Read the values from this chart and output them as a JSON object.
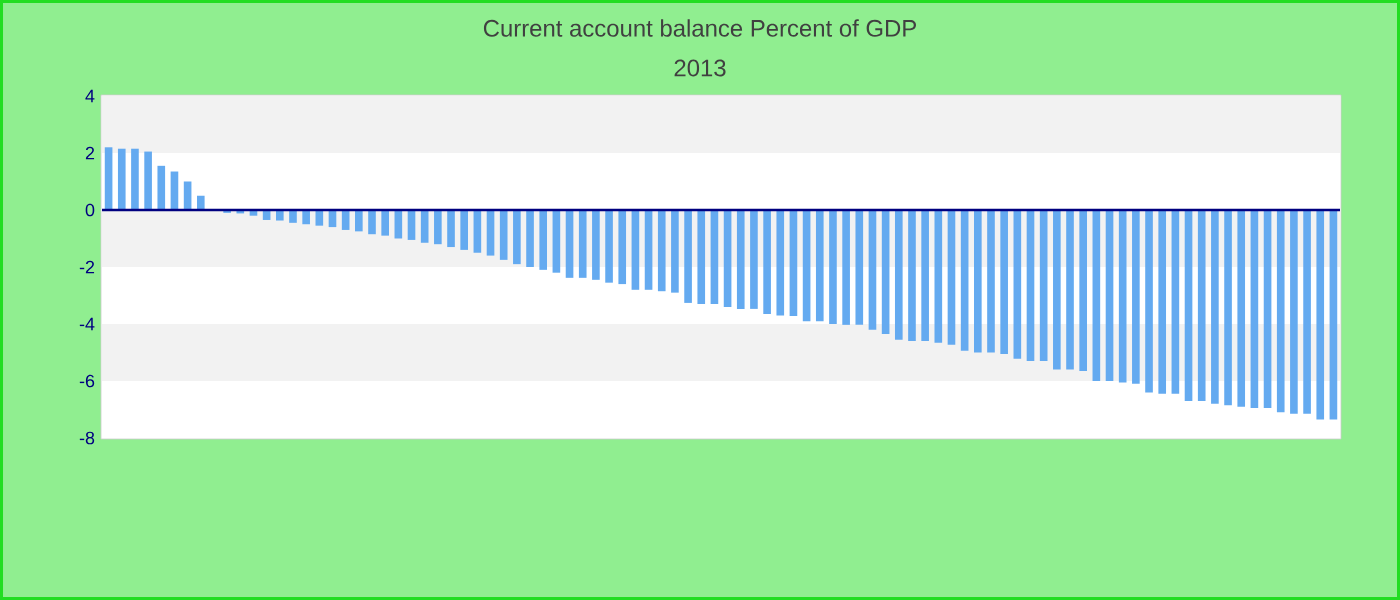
{
  "chart_data": {
    "type": "bar",
    "title": "Current account balance  Percent of GDP",
    "subtitle": "2013",
    "categories": [
      null,
      null,
      null,
      null,
      null,
      null,
      null,
      null,
      null,
      null,
      null,
      null,
      null,
      null,
      null,
      null,
      null,
      null,
      null,
      null,
      null,
      null,
      null,
      null,
      null,
      null,
      null,
      null,
      null,
      null,
      null,
      null,
      null,
      null,
      null,
      null,
      null,
      null,
      null,
      null,
      null,
      null,
      null,
      null,
      null,
      null,
      null,
      null,
      null,
      null,
      null,
      null,
      null,
      null,
      null,
      null,
      null,
      null,
      null,
      null,
      null,
      null,
      null,
      null,
      null,
      null,
      null,
      null,
      null,
      null,
      null,
      null,
      null,
      null,
      null,
      null,
      null,
      null,
      null,
      null,
      null,
      null,
      null,
      null,
      null,
      null,
      null,
      null,
      null,
      null,
      null,
      null,
      null,
      null
    ],
    "values": [
      2.2,
      2.15,
      2.15,
      2.05,
      1.55,
      1.35,
      1.0,
      0.5,
      0,
      -0.1,
      -0.12,
      -0.2,
      -0.35,
      -0.37,
      -0.45,
      -0.5,
      -0.55,
      -0.6,
      -0.7,
      -0.75,
      -0.85,
      -0.9,
      -1.0,
      -1.05,
      -1.15,
      -1.2,
      -1.3,
      -1.4,
      -1.5,
      -1.6,
      -1.75,
      -1.9,
      -2.0,
      -2.1,
      -2.2,
      -2.38,
      -2.38,
      -2.45,
      -2.55,
      -2.6,
      -2.8,
      -2.8,
      -2.85,
      -2.9,
      -3.26,
      -3.3,
      -3.3,
      -3.4,
      -3.47,
      -3.47,
      -3.65,
      -3.7,
      -3.72,
      -3.9,
      -3.9,
      -4.0,
      -4.03,
      -4.03,
      -4.2,
      -4.35,
      -4.55,
      -4.6,
      -4.6,
      -4.66,
      -4.73,
      -4.94,
      -5.0,
      -5.0,
      -5.05,
      -5.22,
      -5.3,
      -5.3,
      -5.6,
      -5.6,
      -5.65,
      -6.0,
      -6.0,
      -6.05,
      -6.1,
      -6.4,
      -6.45,
      -6.45,
      -6.7,
      -6.7,
      -6.8,
      -6.85,
      -6.9,
      -6.95,
      -6.95,
      -7.1,
      -7.15,
      -7.15,
      -7.35,
      -7.35
    ],
    "color": "#64aaf0",
    "ylim": [
      -8,
      4
    ],
    "yticks": [
      -8,
      -6,
      -4,
      -2,
      0,
      2,
      4
    ],
    "tick_labels": "y",
    "ref_lines": [
      {
        "axis": "y",
        "value": 0,
        "color": "#000080"
      }
    ],
    "bands": [
      {
        "axis": "y",
        "from": 2,
        "to": 4,
        "color": "#f2f2f2"
      },
      {
        "axis": "y",
        "from": -2,
        "to": 0,
        "color": "#f2f2f2"
      },
      {
        "axis": "y",
        "from": -6,
        "to": -4,
        "color": "#f2f2f2"
      }
    ]
  }
}
